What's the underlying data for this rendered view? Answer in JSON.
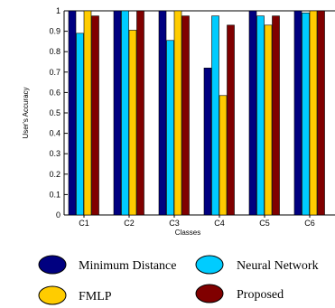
{
  "chart_data": {
    "type": "bar",
    "title": "",
    "xlabel": "Classes",
    "ylabel": "User's Accuracy",
    "ylim": [
      0,
      1
    ],
    "yticks": [
      "0",
      "0.1",
      "0.2",
      "0.3",
      "0.4",
      "0.5",
      "0.6",
      "0.7",
      "0.8",
      "0.9",
      "1"
    ],
    "categories": [
      "C1",
      "C2",
      "C3",
      "C4",
      "C5",
      "C6"
    ],
    "series": [
      {
        "name": "Minimum Distance",
        "color": "#000080",
        "values": [
          1.0,
          1.0,
          1.0,
          0.72,
          1.0,
          1.0
        ]
      },
      {
        "name": "Neural Network",
        "color": "#00ccff",
        "values": [
          0.89,
          1.0,
          0.855,
          0.975,
          0.975,
          0.99
        ]
      },
      {
        "name": "FMLP",
        "color": "#ffcc00",
        "values": [
          1.0,
          0.905,
          1.0,
          0.585,
          0.93,
          1.0
        ]
      },
      {
        "name": "Proposed",
        "color": "#800000",
        "values": [
          0.975,
          1.0,
          0.975,
          0.93,
          0.975,
          1.0
        ]
      }
    ],
    "grid": false,
    "legend_position": "bottom"
  }
}
